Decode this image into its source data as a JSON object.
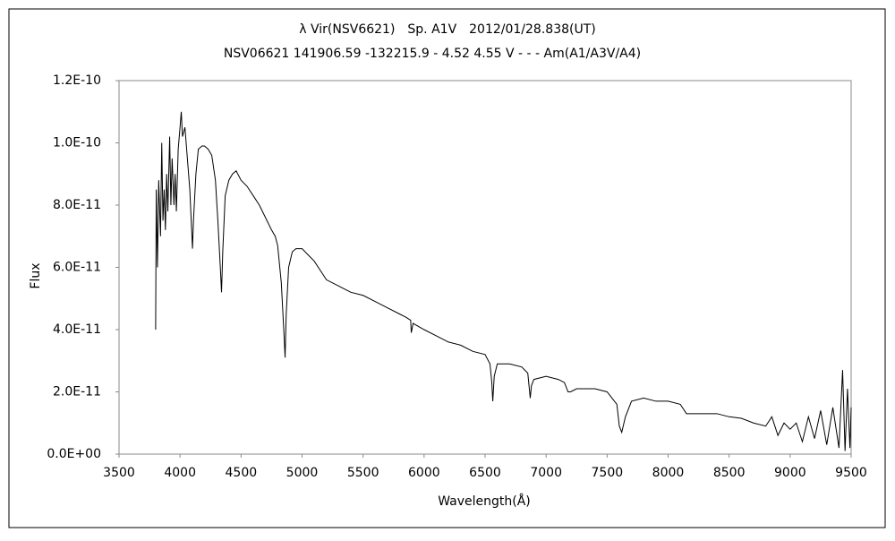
{
  "chart_data": {
    "type": "line",
    "title": "λ Vir(NSV6621)　Sp. A1V　2012/01/28.838(UT)",
    "subtitle": "NSV06621 141906.59 -132215.9 - 4.52 4.55 V - - - Am(A1/A3V/A4)",
    "xlabel": "Wavelength(Å)",
    "ylabel": "Flux",
    "color": "#000000",
    "x": [
      3800,
      3805,
      3815,
      3825,
      3840,
      3850,
      3860,
      3870,
      3880,
      3890,
      3900,
      3915,
      3925,
      3935,
      3950,
      3960,
      3970,
      3985,
      4000,
      4010,
      4020,
      4040,
      4060,
      4080,
      4095,
      4102,
      4110,
      4130,
      4150,
      4180,
      4200,
      4230,
      4260,
      4290,
      4310,
      4330,
      4340,
      4350,
      4370,
      4400,
      4430,
      4460,
      4500,
      4550,
      4600,
      4650,
      4700,
      4750,
      4780,
      4800,
      4830,
      4850,
      4861,
      4870,
      4890,
      4920,
      4950,
      5000,
      5050,
      5100,
      5200,
      5300,
      5400,
      5500,
      5600,
      5700,
      5800,
      5850,
      5890,
      5895,
      5910,
      6000,
      6100,
      6200,
      6300,
      6400,
      6500,
      6540,
      6555,
      6563,
      6575,
      6600,
      6700,
      6800,
      6850,
      6870,
      6880,
      6900,
      7000,
      7100,
      7150,
      7180,
      7200,
      7250,
      7300,
      7400,
      7500,
      7580,
      7600,
      7620,
      7650,
      7700,
      7800,
      7900,
      8000,
      8100,
      8150,
      8200,
      8300,
      8400,
      8500,
      8600,
      8700,
      8800,
      8850,
      8900,
      8950,
      9000,
      9050,
      9100,
      9150,
      9200,
      9250,
      9300,
      9350,
      9400,
      9430,
      9450,
      9470,
      9490,
      9500
    ],
    "values": [
      4e-11,
      8.5e-11,
      6e-11,
      8.8e-11,
      7e-11,
      1e-10,
      7.5e-11,
      8.5e-11,
      7.2e-11,
      9e-11,
      7.8e-11,
      1.02e-10,
      8e-11,
      9.5e-11,
      8e-11,
      9e-11,
      7.8e-11,
      9.8e-11,
      1.05e-10,
      1.1e-10,
      1.02e-10,
      1.05e-10,
      9.5e-11,
      8.5e-11,
      7.2e-11,
      6.6e-11,
      7.5e-11,
      9e-11,
      9.8e-11,
      9.9e-11,
      9.9e-11,
      9.8e-11,
      9.6e-11,
      8.8e-11,
      7.5e-11,
      6e-11,
      5.2e-11,
      6.5e-11,
      8.3e-11,
      8.8e-11,
      9e-11,
      9.1e-11,
      8.8e-11,
      8.6e-11,
      8.3e-11,
      8e-11,
      7.6e-11,
      7.2e-11,
      7e-11,
      6.7e-11,
      5.5e-11,
      4e-11,
      3.1e-11,
      4.5e-11,
      6e-11,
      6.5e-11,
      6.6e-11,
      6.6e-11,
      6.4e-11,
      6.2e-11,
      5.6e-11,
      5.4e-11,
      5.2e-11,
      5.1e-11,
      4.9e-11,
      4.7e-11,
      4.5e-11,
      4.4e-11,
      4.3e-11,
      3.9e-11,
      4.2e-11,
      4e-11,
      3.8e-11,
      3.6e-11,
      3.5e-11,
      3.3e-11,
      3.2e-11,
      2.9e-11,
      2.3e-11,
      1.7e-11,
      2.5e-11,
      2.9e-11,
      2.9e-11,
      2.8e-11,
      2.6e-11,
      1.8e-11,
      2.2e-11,
      2.4e-11,
      2.5e-11,
      2.4e-11,
      2.3e-11,
      2e-11,
      2e-11,
      2.1e-11,
      2.1e-11,
      2.1e-11,
      2e-11,
      1.6e-11,
      9e-12,
      7e-12,
      1.2e-11,
      1.7e-11,
      1.8e-11,
      1.7e-11,
      1.7e-11,
      1.6e-11,
      1.3e-11,
      1.3e-11,
      1.3e-11,
      1.3e-11,
      1.2e-11,
      1.15e-11,
      1e-11,
      9e-12,
      1.2e-11,
      6e-12,
      1e-11,
      8e-12,
      1e-11,
      4e-12,
      1.2e-11,
      5e-12,
      1.4e-11,
      3e-12,
      1.5e-11,
      2e-12,
      2.7e-11,
      1e-12,
      2.1e-11,
      2e-12,
      1.5e-11
    ],
    "xlim": [
      3500,
      9500
    ],
    "xticks": [
      3500,
      4000,
      4500,
      5000,
      5500,
      6000,
      6500,
      7000,
      7500,
      8000,
      8500,
      9000,
      9500
    ],
    "ylim": [
      0,
      1.2e-10
    ],
    "yticks": [
      {
        "value": 0,
        "label": "0.0E+00"
      },
      {
        "value": 2e-11,
        "label": "2.0E-11"
      },
      {
        "value": 4e-11,
        "label": "4.0E-11"
      },
      {
        "value": 6e-11,
        "label": "6.0E-11"
      },
      {
        "value": 8e-11,
        "label": "8.0E-11"
      },
      {
        "value": 1e-10,
        "label": "1.0E-10"
      },
      {
        "value": 1.2e-10,
        "label": "1.2E-10"
      }
    ],
    "grid": false
  }
}
